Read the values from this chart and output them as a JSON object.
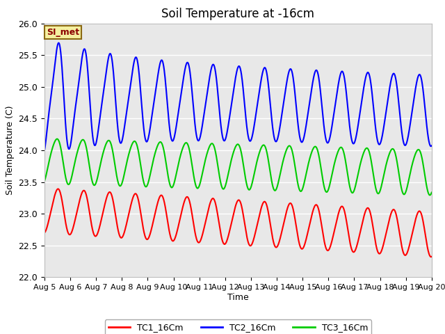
{
  "title": "Soil Temperature at -16cm",
  "xlabel": "Time",
  "ylabel": "Soil Temperature (C)",
  "ylim": [
    22.0,
    26.0
  ],
  "x_tick_labels": [
    "Aug 5",
    "Aug 6",
    "Aug 7",
    "Aug 8",
    "Aug 9",
    "Aug 10",
    "Aug 11",
    "Aug 12",
    "Aug 13",
    "Aug 14",
    "Aug 15",
    "Aug 16",
    "Aug 17",
    "Aug 18",
    "Aug 19",
    "Aug 20"
  ],
  "background_color": "#e8e8e8",
  "fig_background": "#ffffff",
  "annotation_text": "SI_met",
  "annotation_bg": "#f5f0a0",
  "annotation_border": "#8b6914",
  "legend_labels": [
    "TC1_16Cm",
    "TC2_16Cm",
    "TC3_16Cm"
  ],
  "line_colors": [
    "#ff0000",
    "#0000ff",
    "#00cc00"
  ],
  "line_width": 1.5,
  "grid_color": "#ffffff",
  "total_days": 15,
  "points_per_day": 96
}
